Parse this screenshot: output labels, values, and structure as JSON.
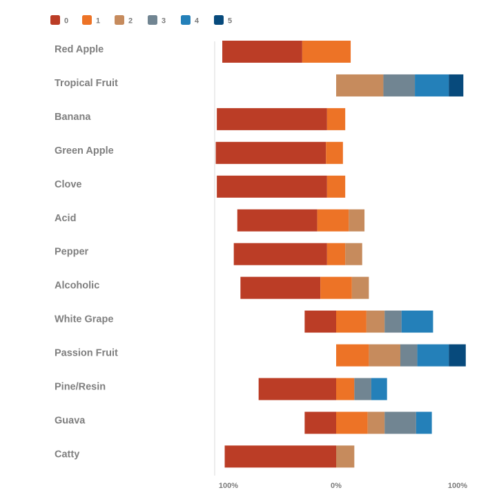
{
  "chart_data": {
    "type": "bar",
    "orientation": "horizontal",
    "stacked": "diverging",
    "title": "",
    "xlabel": "",
    "ylabel": "",
    "xlim": [
      -100,
      100
    ],
    "grid": false,
    "legend_position": "top-left",
    "categories": [
      "Red Apple",
      "Tropical Fruit",
      "Banana",
      "Green Apple",
      "Clove",
      "Acid",
      "Pepper",
      "Alcoholic",
      "White Grape",
      "Passion Fruit",
      "Pine/Resin",
      "Guava",
      "Catty"
    ],
    "x_ticks": [
      "100%",
      "0%",
      "100%"
    ],
    "series": [
      {
        "name": "0",
        "color": "#bb3d26",
        "values": [
          66,
          0,
          91,
          91,
          91,
          66,
          77,
          66,
          26,
          0,
          64,
          26,
          92
        ]
      },
      {
        "name": "1",
        "color": "#ed7326",
        "values": [
          40,
          0,
          15,
          14,
          15,
          26,
          15,
          26,
          25,
          27,
          15,
          26,
          0
        ]
      },
      {
        "name": "2",
        "color": "#c68b5d",
        "values": [
          0,
          39,
          0,
          0,
          0,
          13,
          14,
          14,
          15,
          26,
          0,
          14,
          15
        ]
      },
      {
        "name": "3",
        "color": "#718592",
        "values": [
          0,
          26,
          0,
          0,
          0,
          0,
          0,
          0,
          14,
          14,
          14,
          26,
          0
        ]
      },
      {
        "name": "4",
        "color": "#2480b9",
        "values": [
          0,
          28,
          0,
          0,
          0,
          0,
          0,
          0,
          26,
          26,
          13,
          13,
          0
        ]
      },
      {
        "name": "5",
        "color": "#074a7c",
        "values": [
          0,
          12,
          0,
          0,
          0,
          0,
          0,
          0,
          0,
          14,
          0,
          0,
          0
        ]
      }
    ],
    "neutral_index": [
      1.7,
      0.0,
      1.5,
      1.6,
      1.5,
      1.6,
      1.5,
      1.5,
      1.0,
      0.0,
      1.0,
      1.0,
      1.5
    ]
  }
}
